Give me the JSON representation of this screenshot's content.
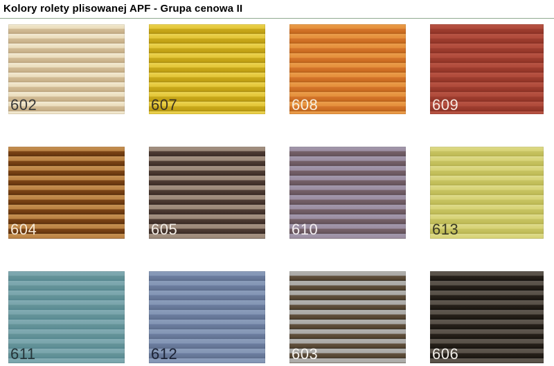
{
  "page": {
    "title": "Kolory rolety plisowanej APF - Grupa cenowa II",
    "background_color": "#ffffff",
    "divider_color": "#8fa88f"
  },
  "palette": {
    "description": "Grid of 12 pleated-blind fabric color samples, 4 columns x 3 rows",
    "swatches": [
      {
        "code": "602",
        "label_color": "#3a3a3a",
        "stripe": {
          "light": "#ecdfc0",
          "lighter": "#f4ecd6",
          "dark": "#d2bc96",
          "darker": "#c8b189",
          "line": "#b59d76"
        }
      },
      {
        "code": "607",
        "label_color": "#3a3222",
        "stripe": {
          "light": "#e5c83c",
          "lighter": "#ecd455",
          "dark": "#c9a91c",
          "darker": "#c09f12",
          "line": "#a4880c"
        }
      },
      {
        "code": "608",
        "label_color": "#f7efdf",
        "stripe": {
          "light": "#e6923e",
          "lighter": "#eb9e4e",
          "dark": "#d4752b",
          "darker": "#c96a1f",
          "line": "#b05a16"
        }
      },
      {
        "code": "609",
        "label_color": "#f7e8e0",
        "stripe": {
          "light": "#b14c3c",
          "lighter": "#b85545",
          "dark": "#9e3e30",
          "darker": "#943628",
          "line": "#832d21"
        }
      },
      {
        "code": "604",
        "label_color": "#f7ead7",
        "stripe": {
          "light": "#bd8546",
          "lighter": "#c69254",
          "dark": "#7c4517",
          "darker": "#6a370e",
          "line": "#512808"
        }
      },
      {
        "code": "605",
        "label_color": "#f3ede6",
        "stripe": {
          "light": "#9d8a7a",
          "lighter": "#a59283",
          "dark": "#4f3d35",
          "darker": "#413029",
          "line": "#2e211d"
        }
      },
      {
        "code": "610",
        "label_color": "#f4eff2",
        "stripe": {
          "light": "#9d90a4",
          "lighter": "#a399ad",
          "dark": "#756169",
          "darker": "#69565e",
          "line": "#58474f"
        }
      },
      {
        "code": "613",
        "label_color": "#3a3a25",
        "stripe": {
          "light": "#d8d479",
          "lighter": "#dfdc8e",
          "dark": "#c7c361",
          "darker": "#c0bc57",
          "line": "#afab49"
        }
      },
      {
        "code": "611",
        "label_color": "#263539",
        "stripe": {
          "light": "#7ba6ad",
          "lighter": "#84adb4",
          "dark": "#659499",
          "darker": "#5e8e95",
          "line": "#50838b"
        }
      },
      {
        "code": "612",
        "label_color": "#1c2335",
        "stripe": {
          "light": "#8597b6",
          "lighter": "#8c9ebc",
          "dark": "#6c7d9f",
          "darker": "#647594",
          "line": "#576787"
        }
      },
      {
        "code": "603",
        "label_color": "#f5f3ef",
        "stripe": {
          "light": "#acaba8",
          "lighter": "#b4b3b0",
          "dark": "#61513f",
          "darker": "#54442f",
          "line": "#33291d"
        }
      },
      {
        "code": "606",
        "label_color": "#f0ede8",
        "stripe": {
          "light": "#595249",
          "lighter": "#605951",
          "dark": "#27211b",
          "darker": "#1e1913",
          "line": "#100e0b"
        }
      }
    ]
  }
}
